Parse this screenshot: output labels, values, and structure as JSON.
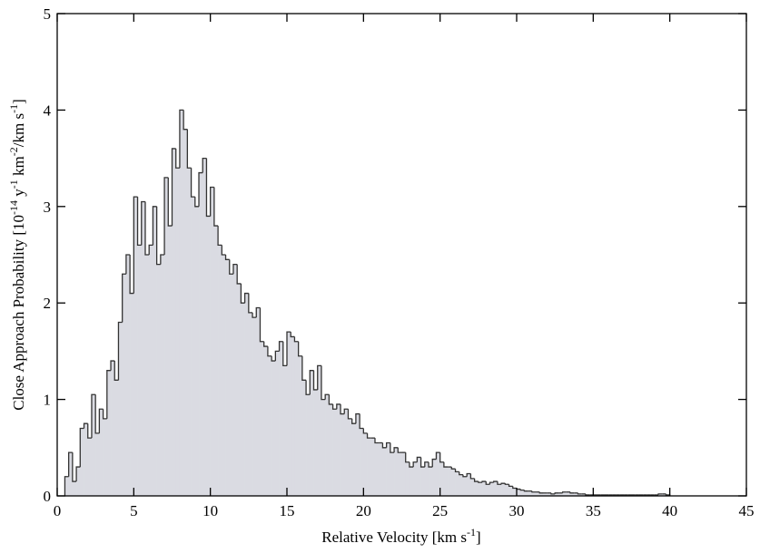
{
  "chart_data": {
    "type": "histogram",
    "xlabel": [
      "Relative Velocity [km s",
      "-1",
      "]"
    ],
    "ylabel": [
      "Close Approach Probability [10",
      "-14",
      " y",
      "-1",
      " km",
      "-2",
      "/km s",
      "-1",
      "]"
    ],
    "bins": [
      0.5,
      0.75,
      1,
      1.25,
      1.5,
      1.75,
      2,
      2.25,
      2.5,
      2.75,
      3,
      3.25,
      3.5,
      3.75,
      4,
      4.25,
      4.5,
      4.75,
      5,
      5.25,
      5.5,
      5.75,
      6,
      6.25,
      6.5,
      6.75,
      7,
      7.25,
      7.5,
      7.75,
      8,
      8.25,
      8.5,
      8.75,
      9,
      9.25,
      9.5,
      9.75,
      10,
      10.25,
      10.5,
      10.75,
      11,
      11.25,
      11.5,
      11.75,
      12,
      12.25,
      12.5,
      12.75,
      13,
      13.25,
      13.5,
      13.75,
      14,
      14.25,
      14.5,
      14.75,
      15,
      15.25,
      15.5,
      15.75,
      16,
      16.25,
      16.5,
      16.75,
      17,
      17.25,
      17.5,
      17.75,
      18,
      18.25,
      18.5,
      18.75,
      19,
      19.25,
      19.5,
      19.75,
      20,
      20.25,
      20.5,
      20.75,
      21,
      21.25,
      21.5,
      21.75,
      22,
      22.25,
      22.5,
      22.75,
      23,
      23.25,
      23.5,
      23.75,
      24,
      24.25,
      24.5,
      24.75,
      25,
      25.25,
      25.5,
      25.75,
      26,
      26.25,
      26.5,
      26.75,
      27,
      27.25,
      27.5,
      27.75,
      28,
      28.25,
      28.5,
      28.75,
      29,
      29.25,
      29.5,
      29.75,
      30,
      30.25,
      30.5,
      30.75,
      31,
      31.25,
      31.5,
      31.75,
      32,
      32.25,
      32.5,
      32.75,
      33,
      33.25,
      33.5,
      33.75,
      34,
      34.25,
      34.5,
      34.75,
      35,
      35.25,
      35.5,
      35.75,
      36,
      36.25,
      36.5,
      36.75,
      37,
      37.25,
      37.5,
      37.75,
      38,
      38.25,
      38.5,
      38.75,
      39,
      39.25,
      39.5,
      39.75,
      40
    ],
    "values": [
      0.2,
      0.45,
      0.15,
      0.3,
      0.7,
      0.75,
      0.6,
      1.05,
      0.65,
      0.9,
      0.8,
      1.3,
      1.4,
      1.2,
      1.8,
      2.3,
      2.5,
      2.1,
      3.1,
      2.6,
      3.05,
      2.5,
      2.6,
      3.0,
      2.4,
      2.5,
      3.3,
      2.8,
      3.6,
      3.4,
      4.0,
      3.8,
      3.4,
      3.1,
      3.0,
      3.35,
      3.5,
      2.9,
      3.2,
      2.8,
      2.6,
      2.5,
      2.45,
      2.3,
      2.4,
      2.2,
      2.0,
      2.1,
      1.9,
      1.85,
      1.95,
      1.6,
      1.55,
      1.45,
      1.4,
      1.5,
      1.6,
      1.35,
      1.7,
      1.65,
      1.6,
      1.45,
      1.2,
      1.05,
      1.3,
      1.1,
      1.35,
      1.0,
      1.05,
      0.95,
      0.9,
      0.95,
      0.85,
      0.9,
      0.8,
      0.75,
      0.85,
      0.7,
      0.65,
      0.6,
      0.6,
      0.55,
      0.55,
      0.5,
      0.55,
      0.45,
      0.5,
      0.45,
      0.45,
      0.35,
      0.3,
      0.35,
      0.4,
      0.3,
      0.35,
      0.3,
      0.38,
      0.45,
      0.35,
      0.3,
      0.3,
      0.28,
      0.25,
      0.22,
      0.2,
      0.23,
      0.18,
      0.15,
      0.14,
      0.15,
      0.12,
      0.14,
      0.15,
      0.12,
      0.13,
      0.12,
      0.1,
      0.08,
      0.07,
      0.06,
      0.05,
      0.05,
      0.04,
      0.04,
      0.03,
      0.03,
      0.03,
      0.02,
      0.03,
      0.03,
      0.04,
      0.04,
      0.03,
      0.03,
      0.02,
      0.02,
      0.01,
      0.01,
      0.01,
      0.01,
      0.01,
      0.01,
      0.01,
      0.01,
      0.01,
      0.01,
      0.01,
      0.01,
      0.01,
      0.01,
      0.01,
      0.01,
      0.01,
      0.01,
      0.01,
      0.02,
      0.02,
      0.01
    ],
    "color": "#dadbe2",
    "edgecolor": "#333333",
    "xlim": [
      0,
      45
    ],
    "xticks": [
      0,
      5,
      10,
      15,
      20,
      25,
      30,
      35,
      40,
      45
    ],
    "ylim": [
      0,
      5
    ],
    "yticks": [
      0,
      1,
      2,
      3,
      4,
      5
    ]
  }
}
